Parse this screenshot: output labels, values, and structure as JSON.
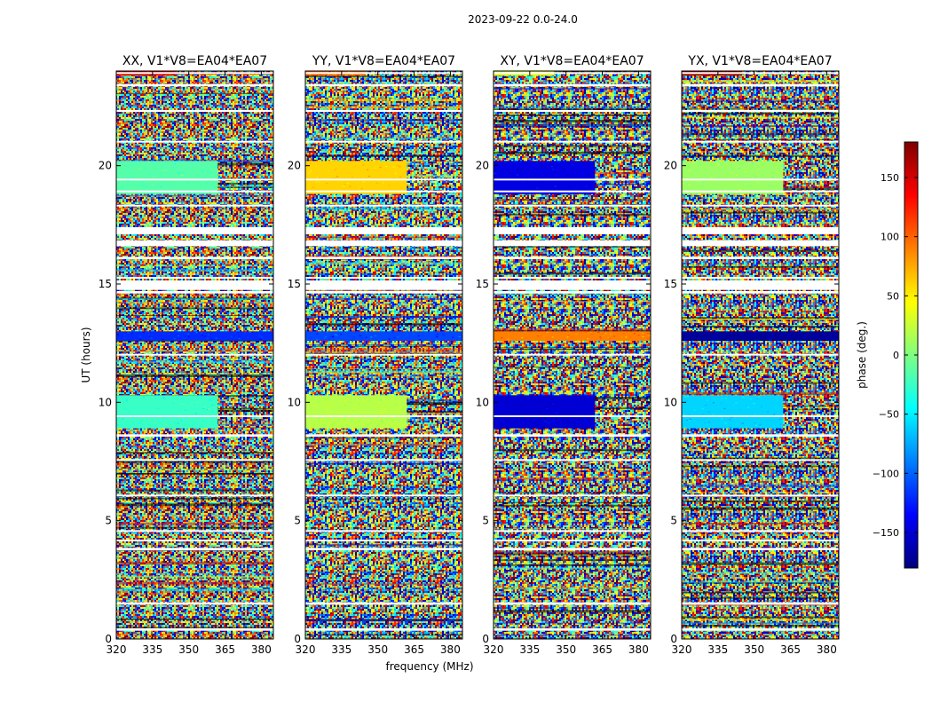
{
  "suptitle": "2023-09-22 0.0-24.0",
  "colormap": [
    "#00007f",
    "#0000ff",
    "#007fff",
    "#00ffff",
    "#7fff7f",
    "#ffff00",
    "#ff7f00",
    "#ff0000",
    "#7f0000"
  ],
  "chart_data": {
    "type": "heatmap",
    "description_shared": {
      "xlabel": "frequency (MHz)",
      "ylabel": "UT (hours)",
      "xlim": [
        320,
        385
      ],
      "ylim": [
        0,
        24
      ],
      "xticks": [
        320,
        335,
        350,
        365,
        380
      ],
      "yticks": [
        0,
        5,
        10,
        15,
        20
      ]
    },
    "panels": [
      {
        "title": "XX, V1*V8=EA04*EA07",
        "bands": [
          {
            "t0": 18.8,
            "t1": 20.2,
            "f0": 320,
            "f1": 362,
            "phase": -15
          },
          {
            "t0": 8.9,
            "t1": 10.3,
            "f0": 320,
            "f1": 362,
            "phase": -25
          },
          {
            "t0": 12.6,
            "t1": 13.0,
            "f0": 320,
            "f1": 385,
            "phase": -120
          },
          {
            "t0": 23.8,
            "t1": 24.0,
            "f0": 320,
            "f1": 345,
            "phase": 150
          }
        ]
      },
      {
        "title": "YY, V1*V8=EA04*EA07",
        "bands": [
          {
            "t0": 18.8,
            "t1": 20.2,
            "f0": 320,
            "f1": 362,
            "phase": 60
          },
          {
            "t0": 8.9,
            "t1": 10.3,
            "f0": 320,
            "f1": 362,
            "phase": 20
          },
          {
            "t0": 12.6,
            "t1": 13.0,
            "f0": 320,
            "f1": 385,
            "phase": -110
          },
          {
            "t0": 23.8,
            "t1": 24.0,
            "f0": 320,
            "f1": 345,
            "phase": 100
          }
        ]
      },
      {
        "title": "XY, V1*V8=EA04*EA07",
        "bands": [
          {
            "t0": 18.8,
            "t1": 20.2,
            "f0": 320,
            "f1": 362,
            "phase": -145
          },
          {
            "t0": 8.9,
            "t1": 10.3,
            "f0": 320,
            "f1": 362,
            "phase": -150
          },
          {
            "t0": 12.6,
            "t1": 13.0,
            "f0": 320,
            "f1": 385,
            "phase": 90
          },
          {
            "t0": 23.8,
            "t1": 24.0,
            "f0": 320,
            "f1": 345,
            "phase": 30
          }
        ]
      },
      {
        "title": "YX, V1*V8=EA04*EA07",
        "bands": [
          {
            "t0": 18.8,
            "t1": 20.2,
            "f0": 320,
            "f1": 362,
            "phase": 10
          },
          {
            "t0": 8.9,
            "t1": 10.3,
            "f0": 320,
            "f1": 362,
            "phase": -60
          },
          {
            "t0": 12.6,
            "t1": 13.0,
            "f0": 320,
            "f1": 385,
            "phase": -170
          },
          {
            "t0": 23.8,
            "t1": 24.0,
            "f0": 320,
            "f1": 345,
            "phase": 170
          }
        ]
      }
    ],
    "flagged_time_ranges": [
      [
        0.35,
        0.45
      ],
      [
        1.45,
        1.55
      ],
      [
        3.75,
        3.85
      ],
      [
        4.15,
        4.2
      ],
      [
        4.55,
        4.6
      ],
      [
        6.05,
        6.1
      ],
      [
        7.55,
        7.6
      ],
      [
        8.55,
        8.65
      ],
      [
        9.4,
        9.45
      ],
      [
        12.0,
        12.05
      ],
      [
        14.6,
        14.7
      ],
      [
        14.75,
        15.15
      ],
      [
        15.25,
        15.3
      ],
      [
        16.05,
        16.15
      ],
      [
        16.6,
        16.85
      ],
      [
        17.1,
        17.4
      ],
      [
        18.3,
        18.35
      ],
      [
        18.9,
        18.95
      ],
      [
        19.4,
        19.45
      ],
      [
        21.0,
        21.05
      ],
      [
        22.3,
        22.35
      ],
      [
        23.35,
        23.45
      ],
      [
        23.9,
        23.95
      ]
    ],
    "colorbar": {
      "label": "phase (deg.)",
      "range": [
        -180,
        180
      ],
      "ticks": [
        -150,
        -100,
        -50,
        0,
        50,
        100,
        150
      ],
      "tick_labels": [
        "−150",
        "−100",
        "−50",
        "0",
        "50",
        "100",
        "150"
      ]
    }
  }
}
